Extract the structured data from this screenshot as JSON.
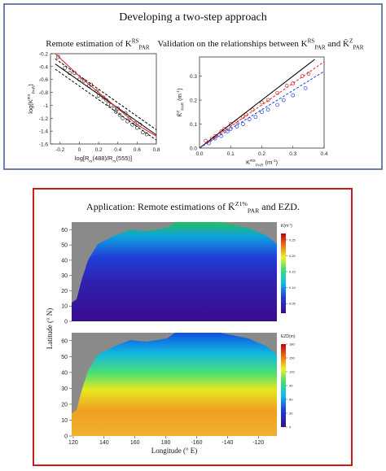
{
  "header": {
    "title": "Developing a two-step approach"
  },
  "chart_data": [
    {
      "type": "scatter",
      "title": [
        {
          "text": "Remote estimation of "
        },
        {
          "text": "K"
        },
        {
          "text": "RS",
          "shift": "sup"
        },
        {
          "text": "PAR",
          "shift": "sub"
        }
      ],
      "xlabel": [
        {
          "text": "log[R"
        },
        {
          "text": "rs",
          "shift": "sub"
        },
        {
          "text": "(488)/R"
        },
        {
          "text": "rs",
          "shift": "sub"
        },
        {
          "text": "(555)]"
        }
      ],
      "ylabel": [
        {
          "text": "log("
        },
        {
          "text": "K"
        },
        {
          "text": "RS",
          "shift": "sup"
        },
        {
          "text": "PAR",
          "shift": "sub"
        },
        {
          "text": ")"
        }
      ],
      "xlim": [
        -0.3,
        0.8
      ],
      "xticks": [
        -0.2,
        0,
        0.2,
        0.4,
        0.6,
        0.8
      ],
      "ylim": [
        -1.6,
        -0.2
      ],
      "yticks": [
        -0.2,
        -0.4,
        -0.6,
        -0.8,
        -1,
        -1.2,
        -1.4,
        -1.6
      ],
      "series": [
        {
          "mode": "markers",
          "color": "#333333",
          "x": [
            -0.22,
            -0.15,
            -0.1,
            -0.05,
            0,
            0.05,
            0.1,
            0.12,
            0.18,
            0.2,
            0.25,
            0.28,
            0.3,
            0.33,
            0.36,
            0.38,
            0.4,
            0.42,
            0.45,
            0.48,
            0.5,
            0.52,
            0.55,
            0.58,
            0.6,
            0.63,
            0.66,
            0.7
          ],
          "values": [
            -0.25,
            -0.42,
            -0.5,
            -0.5,
            -0.6,
            -0.62,
            -0.7,
            -0.68,
            -0.78,
            -0.85,
            -0.88,
            -0.92,
            -0.98,
            -1.0,
            -1.05,
            -1.1,
            -1.05,
            -1.15,
            -1.2,
            -1.12,
            -1.25,
            -1.2,
            -1.3,
            -1.28,
            -1.35,
            -1.3,
            -1.42,
            -1.45
          ]
        },
        {
          "mode": "line",
          "style": "solid",
          "color": "#000000",
          "x": [
            -0.25,
            0.8
          ],
          "values": [
            -0.36,
            -1.46
          ]
        },
        {
          "mode": "line",
          "style": "dashed",
          "color": "#000000",
          "x": [
            -0.25,
            0.8
          ],
          "values": [
            -0.28,
            -1.38
          ]
        },
        {
          "mode": "line",
          "style": "dashed",
          "color": "#000000",
          "x": [
            -0.25,
            0.8
          ],
          "values": [
            -0.44,
            -1.54
          ]
        },
        {
          "mode": "line",
          "style": "solid",
          "color": "#e02020",
          "x": [
            -0.25,
            0,
            0.2,
            0.4,
            0.6,
            0.8
          ],
          "values": [
            -0.2,
            -0.55,
            -0.8,
            -1.05,
            -1.3,
            -1.48
          ]
        }
      ]
    },
    {
      "type": "scatter",
      "title": [
        {
          "text": "Validation on the relationships between "
        },
        {
          "text": "K"
        },
        {
          "text": "RS",
          "shift": "sup"
        },
        {
          "text": "PAR",
          "shift": "sub"
        },
        {
          "text": " and "
        },
        {
          "text": "K̄"
        },
        {
          "text": "Z",
          "shift": "sup"
        },
        {
          "text": "PAR",
          "shift": "sub"
        }
      ],
      "xlabel": [
        {
          "text": "K"
        },
        {
          "text": "RS",
          "shift": "sup"
        },
        {
          "text": "PAR",
          "shift": "sub"
        },
        {
          "text": " (m"
        },
        {
          "text": "-1",
          "shift": "sup"
        },
        {
          "text": ")"
        }
      ],
      "ylabel": [
        {
          "text": "K̄"
        },
        {
          "text": "Z",
          "shift": "sup"
        },
        {
          "text": "PAR",
          "shift": "sub"
        },
        {
          "text": " (m"
        },
        {
          "text": "-1",
          "shift": "sup"
        },
        {
          "text": ")"
        }
      ],
      "xlim": [
        0,
        0.4
      ],
      "xticks": [
        {
          "value": 0,
          "label": "0.0"
        },
        0.1,
        0.2,
        0.3,
        0.4
      ],
      "ylim": [
        0,
        0.38
      ],
      "yticks": [
        {
          "value": 0,
          "label": "0.0"
        },
        0.1,
        0.2,
        0.3
      ],
      "series": [
        {
          "mode": "markers",
          "color": "#d42a2a",
          "x": [
            0.02,
            0.04,
            0.05,
            0.07,
            0.08,
            0.1,
            0.12,
            0.14,
            0.15,
            0.17,
            0.2,
            0.22,
            0.25,
            0.28,
            0.3,
            0.33,
            0.35
          ],
          "values": [
            0.03,
            0.04,
            0.05,
            0.07,
            0.08,
            0.1,
            0.11,
            0.13,
            0.14,
            0.16,
            0.19,
            0.2,
            0.23,
            0.26,
            0.27,
            0.3,
            0.31
          ]
        },
        {
          "mode": "markers",
          "color": "#2a3ad4",
          "x": [
            0.03,
            0.05,
            0.07,
            0.09,
            0.1,
            0.12,
            0.14,
            0.16,
            0.18,
            0.2,
            0.22,
            0.25,
            0.27,
            0.3,
            0.34
          ],
          "values": [
            0.02,
            0.04,
            0.05,
            0.07,
            0.08,
            0.09,
            0.1,
            0.12,
            0.13,
            0.15,
            0.16,
            0.18,
            0.2,
            0.22,
            0.25
          ]
        },
        {
          "mode": "line",
          "style": "solid",
          "color": "#000000",
          "x": [
            0,
            0.37
          ],
          "values": [
            0,
            0.37
          ]
        },
        {
          "mode": "line",
          "style": "dashed",
          "color": "#e02020",
          "x": [
            0,
            0.4
          ],
          "values": [
            0,
            0.36
          ]
        },
        {
          "mode": "line",
          "style": "dashed",
          "color": "#2040e0",
          "x": [
            0,
            0.4
          ],
          "values": [
            0,
            0.32
          ]
        }
      ]
    }
  ],
  "application": {
    "title": [
      {
        "text": "Application: Remote estimations of "
      },
      {
        "text": "K̄"
      },
      {
        "text": "Z1%",
        "shift": "sup"
      },
      {
        "text": "PAR",
        "shift": "sub"
      },
      {
        "text": " and EZD."
      }
    ],
    "xlabel": "Longitude (° E)",
    "ylabel": "Latitude (° N)",
    "xlim": [
      119,
      252
    ],
    "xticks": [
      120,
      140,
      160,
      180,
      {
        "value": 200,
        "label": "-160"
      },
      {
        "value": 220,
        "label": "-140"
      },
      {
        "value": 240,
        "label": "-120"
      }
    ],
    "ylim": [
      0,
      65
    ],
    "yticks": [
      0,
      10,
      20,
      30,
      40,
      50,
      60
    ],
    "panels": [
      {
        "colorbar_label": [
          {
            "text": "K"
          },
          {
            "text": "(m"
          },
          {
            "text": "-1",
            "shift": "sup"
          },
          {
            "text": ")"
          }
        ],
        "clim": [
          0.02,
          0.27
        ],
        "colorbar_ticks": [
          {
            "value": 0.05,
            "label": "0.05"
          },
          {
            "value": 0.1,
            "label": "0.10"
          },
          {
            "value": 0.15,
            "label": "0.15"
          },
          {
            "value": 0.2,
            "label": "0.20"
          },
          {
            "value": 0.25,
            "label": "0.25"
          }
        ]
      },
      {
        "colorbar_label": [
          {
            "text": "EZD"
          },
          {
            "text": "(m)"
          }
        ],
        "clim": [
          0,
          180
        ],
        "colorbar_ticks": [
          0,
          30,
          60,
          90,
          120,
          150,
          180
        ]
      }
    ]
  }
}
